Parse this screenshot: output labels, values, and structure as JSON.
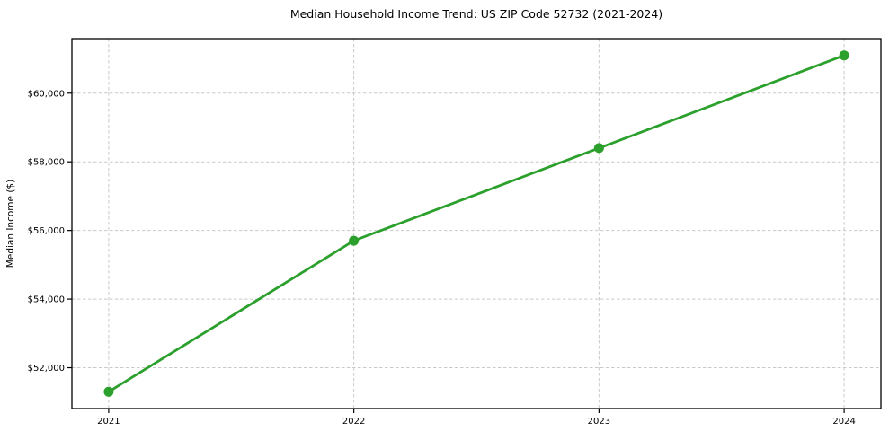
{
  "chart_data": {
    "type": "line",
    "title": "Median Household Income Trend: US ZIP Code 52732 (2021-2024)",
    "xlabel": "",
    "ylabel": "Median Income ($)",
    "x": [
      2021,
      2022,
      2023,
      2024
    ],
    "xtick_labels": [
      "2021",
      "2022",
      "2023",
      "2024"
    ],
    "series": [
      {
        "name": "Median Household Income",
        "values": [
          51300,
          55700,
          58400,
          61100
        ]
      }
    ],
    "yticks": [
      52000,
      54000,
      56000,
      58000,
      60000
    ],
    "ytick_labels": [
      "$52,000",
      "$54,000",
      "$56,000",
      "$58,000",
      "$60,000"
    ],
    "xlim": [
      2020.85,
      2024.15
    ],
    "ylim": [
      50810,
      61590
    ],
    "grid": true,
    "grid_style": "dashed",
    "legend": false,
    "colors": {
      "line": "#2ca02c",
      "marker": "#2ca02c",
      "grid": "#c9c9c9",
      "spine": "#000000",
      "text": "#000000",
      "background": "#ffffff"
    }
  }
}
